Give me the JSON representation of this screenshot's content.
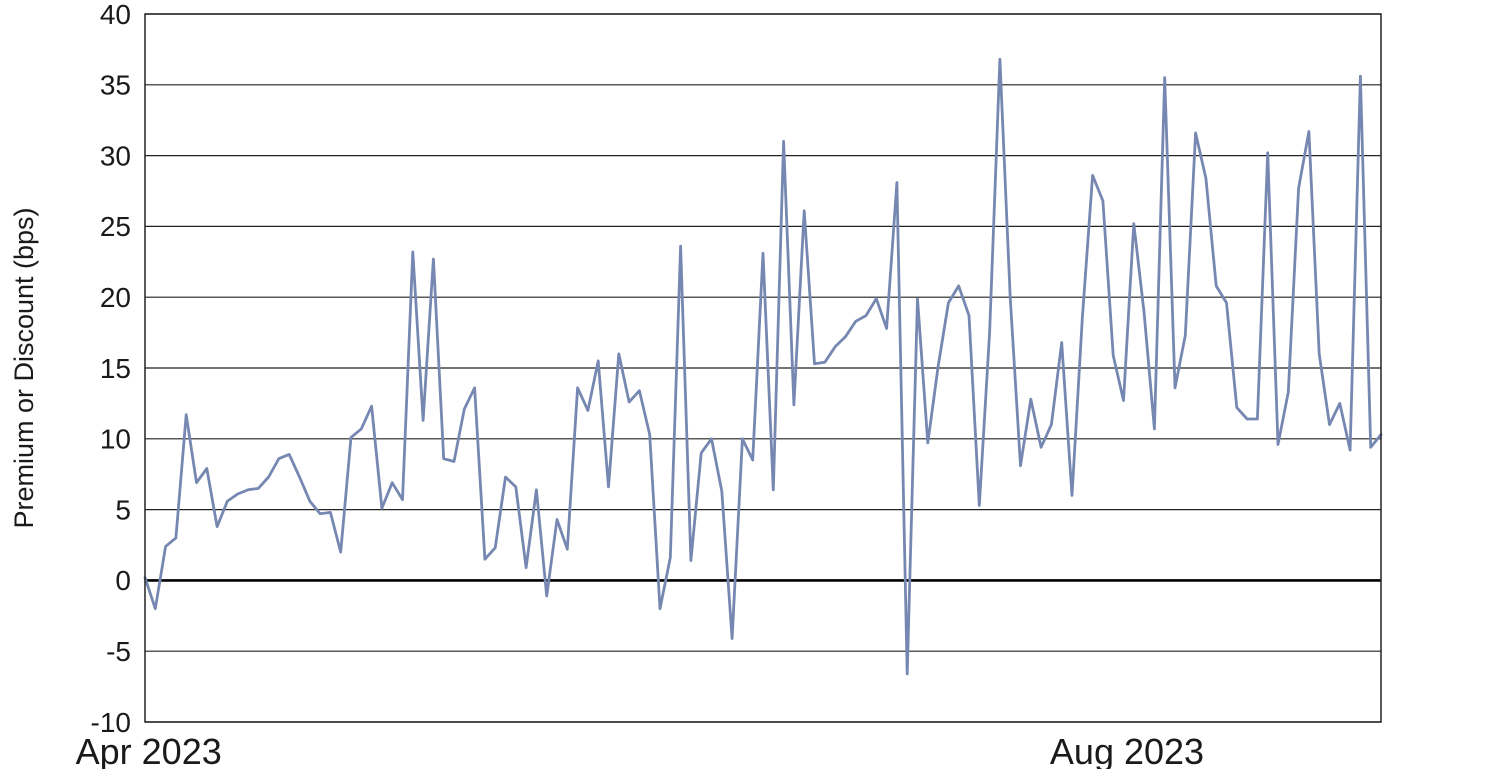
{
  "chart_data": {
    "type": "line",
    "title": "",
    "ylabel": "Premium or Discount (bps)",
    "xlabel": "",
    "ylim": [
      -10,
      40
    ],
    "y_ticks": [
      40,
      35,
      30,
      25,
      20,
      15,
      10,
      5,
      0,
      -5,
      -10
    ],
    "x_tick_labels": [
      {
        "label": "Apr 2023",
        "pos": 0.003
      },
      {
        "label": "Aug 2023",
        "pos": 0.7945
      }
    ],
    "grid": true,
    "zero_line_emphasized": true,
    "legend_position": "none",
    "line_color": "#7688b1",
    "series": [
      {
        "name": "Premium or Discount (bps)",
        "values": [
          0.2,
          -2.0,
          2.4,
          3.0,
          11.7,
          6.9,
          7.9,
          3.8,
          5.6,
          6.1,
          6.4,
          6.5,
          7.3,
          8.6,
          8.9,
          7.3,
          5.6,
          4.7,
          4.8,
          2.0,
          10.1,
          10.7,
          12.3,
          5.1,
          6.9,
          5.7,
          23.2,
          11.3,
          22.7,
          8.6,
          8.4,
          12.1,
          13.6,
          1.5,
          2.3,
          7.3,
          6.6,
          0.9,
          6.4,
          -1.1,
          4.3,
          2.2,
          13.6,
          12.0,
          15.5,
          6.6,
          16.0,
          12.6,
          13.4,
          10.3,
          -2.0,
          1.6,
          23.6,
          1.4,
          9.0,
          10.0,
          6.3,
          -4.1,
          10.0,
          8.5,
          23.1,
          6.4,
          31.0,
          12.4,
          26.1,
          15.3,
          15.4,
          16.5,
          17.2,
          18.3,
          18.7,
          19.9,
          17.8,
          28.1,
          -6.6,
          19.9,
          9.7,
          15.1,
          19.6,
          20.8,
          18.7,
          5.3,
          17.5,
          36.8,
          20.0,
          8.1,
          12.8,
          9.4,
          11.0,
          16.8,
          6.0,
          18.5,
          28.6,
          26.8,
          15.9,
          12.7,
          25.2,
          18.9,
          10.7,
          35.5,
          13.6,
          17.3,
          31.6,
          28.4,
          20.8,
          19.6,
          12.2,
          11.4,
          11.4,
          30.2,
          9.6,
          13.3,
          27.7,
          31.7,
          16.0,
          11.0,
          12.5,
          9.2,
          35.6,
          9.4,
          10.3
        ]
      }
    ]
  }
}
